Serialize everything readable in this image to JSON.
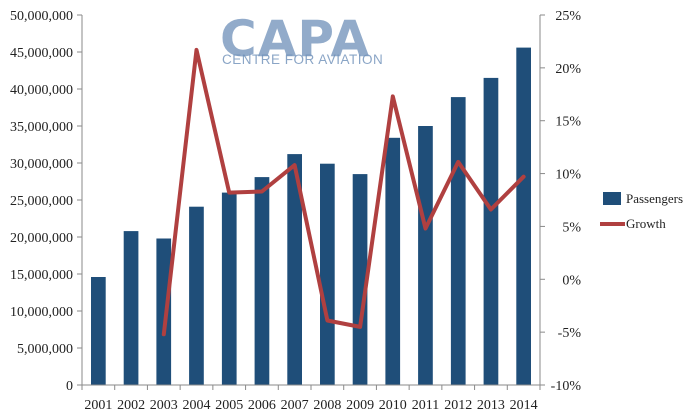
{
  "watermark": {
    "main": "CAPA",
    "sub": "CENTRE FOR AVIATION",
    "color": "#6d8fb8"
  },
  "chart_data": {
    "type": "bar",
    "categories": [
      "2001",
      "2002",
      "2003",
      "2004",
      "2005",
      "2006",
      "2007",
      "2008",
      "2009",
      "2010",
      "2011",
      "2012",
      "2013",
      "2014"
    ],
    "series": [
      {
        "name": "Passengers",
        "type": "bar",
        "axis": "left",
        "color": "#1f4e79",
        "values": [
          14600000,
          20800000,
          19800000,
          24100000,
          26000000,
          28100000,
          31200000,
          29900000,
          28500000,
          33400000,
          35000000,
          38900000,
          41500000,
          45600000
        ]
      },
      {
        "name": "Growth",
        "type": "line",
        "axis": "right",
        "color": "#b04040",
        "values": [
          null,
          null,
          -5.2,
          21.7,
          8.2,
          8.3,
          10.8,
          -3.9,
          -4.5,
          17.3,
          4.8,
          11.1,
          6.6,
          9.7
        ]
      }
    ],
    "y_left": {
      "min": 0,
      "max": 50000000,
      "ticks": [
        "0",
        "5,000,000",
        "10,000,000",
        "15,000,000",
        "20,000,000",
        "25,000,000",
        "30,000,000",
        "35,000,000",
        "40,000,000",
        "45,000,000",
        "50,000,000"
      ]
    },
    "y_right": {
      "min": -10,
      "max": 25,
      "ticks": [
        "-10%",
        "-5%",
        "0%",
        "5%",
        "10%",
        "15%",
        "20%",
        "25%"
      ]
    },
    "grid": false,
    "legend": "right"
  }
}
